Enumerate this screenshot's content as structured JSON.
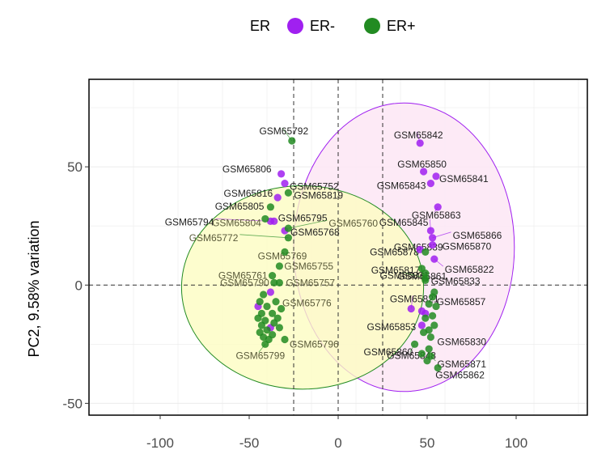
{
  "chart_data": {
    "type": "scatter",
    "title": "",
    "xlabel": "",
    "ylabel": "PC2, 9.58% variation",
    "xlim": [
      -140,
      140
    ],
    "ylim": [
      -55,
      87
    ],
    "x_ticks": [
      -100,
      -50,
      0,
      50,
      100
    ],
    "y_ticks": [
      -50,
      0,
      50
    ],
    "vlines": [
      -25,
      0,
      25
    ],
    "hlines": [
      0
    ],
    "grid": true,
    "legend": {
      "position": "top",
      "title": "ER",
      "entries": [
        {
          "label": "ER-",
          "color": "#a020f0"
        },
        {
          "label": "ER+",
          "color": "#228b22"
        }
      ]
    },
    "ellipses": [
      {
        "group": "ER-",
        "center": [
          37,
          16
        ],
        "radii": [
          62,
          61
        ],
        "fill": "#fde6f4",
        "stroke": "#a020f0"
      },
      {
        "group": "ER+",
        "center": [
          -20,
          -1
        ],
        "radii": [
          68,
          43
        ],
        "fill": "#fdfcc0",
        "stroke": "#228b22"
      }
    ],
    "series": [
      {
        "name": "ER-",
        "color": "#a020f0",
        "points": [
          {
            "label": "GSM65842",
            "x": 46,
            "y": 60
          },
          {
            "label": "GSM65850",
            "x": 48,
            "y": 48
          },
          {
            "label": "GSM65843",
            "x": 52,
            "y": 43
          },
          {
            "label": "GSM65841",
            "x": 55,
            "y": 46
          },
          {
            "label": "GSM65863",
            "x": 56,
            "y": 33
          },
          {
            "label": "GSM65845",
            "x": 52,
            "y": 23
          },
          {
            "label": "GSM65866",
            "x": 53,
            "y": 20
          },
          {
            "label": "GSM65870",
            "x": 53,
            "y": 17
          },
          {
            "label": "GSM65822",
            "x": 54,
            "y": 11
          },
          {
            "label": "GSM65839",
            "x": 46,
            "y": 15
          },
          {
            "label": "GSM65806",
            "x": -32,
            "y": 47
          },
          {
            "label": "GSM65752",
            "x": -30,
            "y": 43
          },
          {
            "label": "GSM65816",
            "x": -34,
            "y": 37
          },
          {
            "label": "GSM65795",
            "x": -36,
            "y": 27
          },
          {
            "label": "GSM65794",
            "x": -38,
            "y": 27
          },
          {
            "label": "GSM65768",
            "x": -30,
            "y": 23
          },
          {
            "label": "GSM65821",
            "x": 41,
            "y": -10
          },
          {
            "label": "",
            "x": 47,
            "y": -11
          },
          {
            "label": "",
            "x": 49,
            "y": -12
          },
          {
            "label": "",
            "x": 47,
            "y": -17
          },
          {
            "label": "",
            "x": -38,
            "y": -3
          },
          {
            "label": "",
            "x": -45,
            "y": -9
          },
          {
            "label": "",
            "x": -38,
            "y": -18
          }
        ]
      },
      {
        "name": "ER+",
        "color": "#228b22",
        "points": [
          {
            "label": "GSM65792",
            "x": -26,
            "y": 61
          },
          {
            "label": "GSM65819",
            "x": -28,
            "y": 39
          },
          {
            "label": "GSM65805",
            "x": -38,
            "y": 33
          },
          {
            "label": "GSM65804",
            "x": -41,
            "y": 28
          },
          {
            "label": "GSM65772",
            "x": -28,
            "y": 20
          },
          {
            "label": "GSM65760",
            "x": -28,
            "y": 24
          },
          {
            "label": "GSM65769",
            "x": -30,
            "y": 14
          },
          {
            "label": "GSM65761",
            "x": -37,
            "y": 4
          },
          {
            "label": "GSM65755",
            "x": -33,
            "y": 8
          },
          {
            "label": "GSM65790",
            "x": -36,
            "y": 1
          },
          {
            "label": "GSM65757",
            "x": -33,
            "y": 1
          },
          {
            "label": "GSM65776",
            "x": -35,
            "y": -7
          },
          {
            "label": "GSM65799",
            "x": -41,
            "y": -25
          },
          {
            "label": "GSM65796",
            "x": -30,
            "y": -23
          },
          {
            "label": "GSM65878",
            "x": 49,
            "y": 14
          },
          {
            "label": "GSM65817",
            "x": 47,
            "y": 7
          },
          {
            "label": "GSM65861",
            "x": 49,
            "y": 5
          },
          {
            "label": "GSM65831",
            "x": 49,
            "y": 3
          },
          {
            "label": "GSM65833",
            "x": 49,
            "y": 2
          },
          {
            "label": "GSM65857",
            "x": 53,
            "y": -5
          },
          {
            "label": "GSM65853",
            "x": 51,
            "y": -19
          },
          {
            "label": "GSM65830",
            "x": 52,
            "y": -22
          },
          {
            "label": "GSM65860",
            "x": 51,
            "y": -27
          },
          {
            "label": "GSM65871",
            "x": 52,
            "y": -30
          },
          {
            "label": "GSM65848",
            "x": 43,
            "y": -25
          },
          {
            "label": "GSM65862",
            "x": 56,
            "y": -35
          },
          {
            "label": "",
            "x": -42,
            "y": -4
          },
          {
            "label": "",
            "x": -44,
            "y": -7
          },
          {
            "label": "",
            "x": -40,
            "y": -9
          },
          {
            "label": "",
            "x": -43,
            "y": -12
          },
          {
            "label": "",
            "x": -45,
            "y": -14
          },
          {
            "label": "",
            "x": -41,
            "y": -15
          },
          {
            "label": "",
            "x": -43,
            "y": -17
          },
          {
            "label": "",
            "x": -40,
            "y": -19
          },
          {
            "label": "",
            "x": -44,
            "y": -20
          },
          {
            "label": "",
            "x": -37,
            "y": -12
          },
          {
            "label": "",
            "x": -34,
            "y": -14
          },
          {
            "label": "",
            "x": -36,
            "y": -16
          },
          {
            "label": "",
            "x": -33,
            "y": -18
          },
          {
            "label": "",
            "x": -37,
            "y": -21
          },
          {
            "label": "",
            "x": -32,
            "y": -10
          },
          {
            "label": "",
            "x": -39,
            "y": -23
          },
          {
            "label": "",
            "x": -42,
            "y": -22
          },
          {
            "label": "",
            "x": 51,
            "y": -8
          },
          {
            "label": "",
            "x": 55,
            "y": -9
          },
          {
            "label": "",
            "x": 49,
            "y": -14
          },
          {
            "label": "",
            "x": 53,
            "y": -13
          },
          {
            "label": "",
            "x": 48,
            "y": -20
          },
          {
            "label": "",
            "x": 54,
            "y": -17
          },
          {
            "label": "",
            "x": 47,
            "y": -29
          },
          {
            "label": "",
            "x": 50,
            "y": -32
          },
          {
            "label": "",
            "x": 54,
            "y": -3
          }
        ]
      }
    ]
  }
}
